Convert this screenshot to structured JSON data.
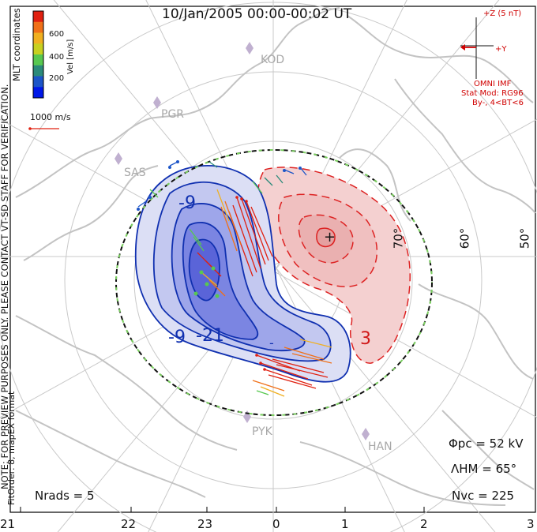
{
  "title": "10/Jan/2005 00:00-00:02 UT",
  "colorbar": {
    "label": "Vel [m/s]",
    "ticks": [
      "600",
      "400",
      "200"
    ],
    "colors": [
      "#0018e8",
      "#1c55c8",
      "#2b8a7a",
      "#58c850",
      "#c8d020",
      "#f0b020",
      "#f07018",
      "#e02010"
    ]
  },
  "side_text": {
    "coords": "MLT coordinates",
    "note": "NOTE: FOR PREVIEW PURPOSES ONLY. PLEASE CONTACT VT-SD STAFF FOR VERIFICATION.",
    "fit": "FitOrder: 8, mapEX format"
  },
  "scale_vector": {
    "label": "1000 m/s"
  },
  "stations": [
    "KOD",
    "PGR",
    "SAS",
    "PYK",
    "HAN"
  ],
  "latitude_labels": [
    "70°",
    "60°",
    "50°"
  ],
  "imf": {
    "magnitude": "+Z (5 nT)",
    "y_axis": "+Y",
    "source": "OMNI IMF",
    "model": "Stat Mod: RG96",
    "condition": "By-, 4<BT<6"
  },
  "contour_labels": {
    "neg_outer": "-9",
    "neg_inner": "-21",
    "neg_mid": "-9",
    "pos": "3",
    "neg_min_marker": "-",
    "pos_max_marker": "+"
  },
  "stats": {
    "phi_pc": "Φpc = 52 kV",
    "lambda_hm": "ΛHM = 65°",
    "nvc": "Nvc = 225",
    "nrads": "Nrads = 5"
  },
  "mlt_ticks": [
    "21",
    "22",
    "23",
    "0",
    "1",
    "2",
    "3"
  ],
  "colors": {
    "negative_fill": "#4a5ee0",
    "positive_fill": "#f3c8c8",
    "neg_line": "#1030b0",
    "pos_line": "#d01818",
    "map": "#c8c8c8",
    "grid": "#c8c8c8"
  }
}
